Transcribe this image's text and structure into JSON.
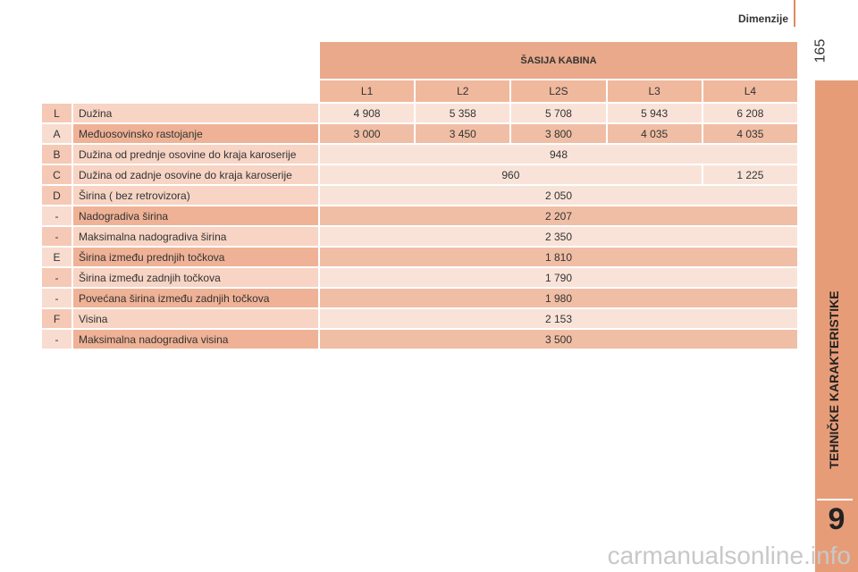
{
  "header": {
    "section": "Dimenzije",
    "page_number": "165"
  },
  "sidebar": {
    "chapter_title": "TEHNIČKE KARAKTERISTIKE",
    "chapter_number": "9"
  },
  "table": {
    "title": "ŠASIJA KABINA",
    "columns": [
      "L1",
      "L2",
      "L2S",
      "L3",
      "L4"
    ],
    "rows": [
      {
        "code": "L",
        "label": "Dužina",
        "values": [
          "4 908",
          "5 358",
          "5 708",
          "5 943",
          "6 208"
        ]
      },
      {
        "code": "A",
        "label": "Međuosovinsko rastojanje",
        "values": [
          "3 000",
          "3 450",
          "3 800",
          "4 035",
          "4 035"
        ]
      },
      {
        "code": "B",
        "label": "Dužina od prednje osovine do kraja karoserije",
        "values": [
          "948"
        ]
      },
      {
        "code": "C",
        "label": "Dužina od zadnje osovine do kraja karoserije",
        "values": [
          "960",
          "1 225"
        ]
      },
      {
        "code": "D",
        "label": "Širina ( bez retrovizora)",
        "values": [
          "2 050"
        ]
      },
      {
        "code": "-",
        "label": "Nadogradiva širina",
        "values": [
          "2 207"
        ]
      },
      {
        "code": "-",
        "label": "Maksimalna nadogradiva širina",
        "values": [
          "2 350"
        ]
      },
      {
        "code": "E",
        "label": "Širina između prednjih točkova",
        "values": [
          "1 810"
        ]
      },
      {
        "code": "-",
        "label": "Širina između zadnjih točkova",
        "values": [
          "1 790"
        ]
      },
      {
        "code": "-",
        "label": "Povećana širina između zadnjih točkova",
        "values": [
          "1 980"
        ]
      },
      {
        "code": "F",
        "label": "Visina",
        "values": [
          "2 153"
        ]
      },
      {
        "code": "-",
        "label": "Maksimalna nadogradiva visina",
        "values": [
          "3 500"
        ]
      }
    ]
  },
  "watermark": "carmanualsonline.info"
}
